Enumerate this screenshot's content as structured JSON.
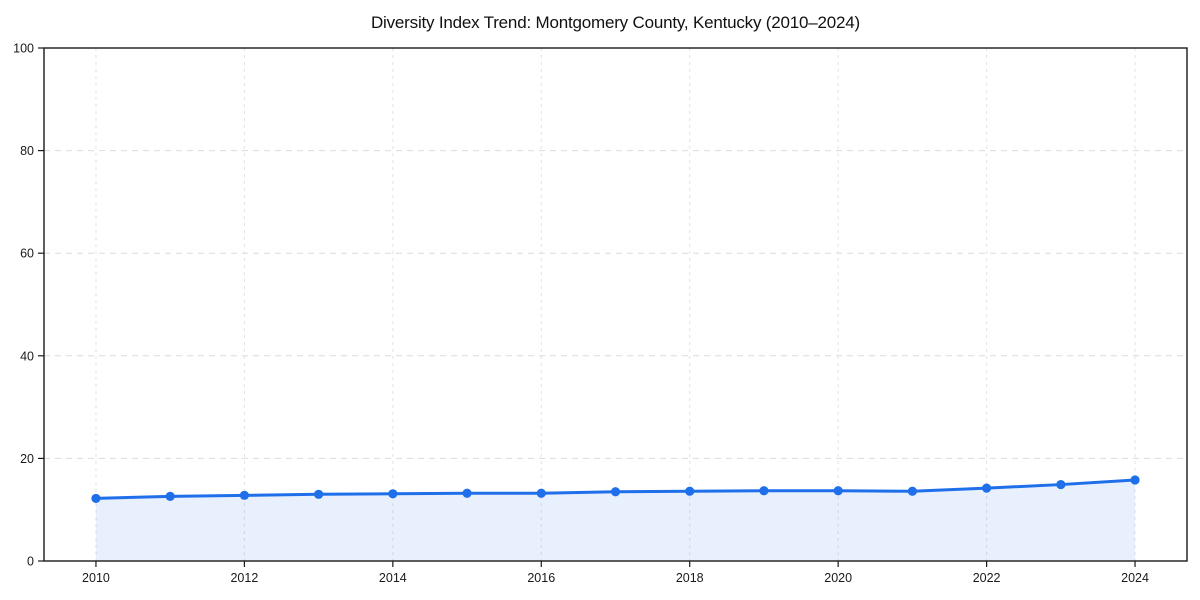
{
  "chart": {
    "title": "Diversity Index Trend: Montgomery County, Kentucky (2010–2024)"
  },
  "chart_data": {
    "type": "line",
    "title": "Diversity Index Trend: Montgomery County, Kentucky (2010–2024)",
    "x": [
      2010,
      2011,
      2012,
      2013,
      2014,
      2015,
      2016,
      2017,
      2018,
      2019,
      2020,
      2021,
      2022,
      2023,
      2024
    ],
    "series": [
      {
        "name": "Diversity Index",
        "values": [
          12.2,
          12.6,
          12.8,
          13.0,
          13.1,
          13.2,
          13.2,
          13.5,
          13.6,
          13.7,
          13.7,
          13.6,
          14.2,
          14.9,
          15.8
        ]
      }
    ],
    "xlabel": "",
    "ylabel": "",
    "xlim": [
      2009.3,
      2024.7
    ],
    "ylim": [
      0,
      100
    ],
    "yticks": [
      0,
      20,
      40,
      60,
      80,
      100
    ],
    "ytick_labels": [
      "0",
      "20",
      "40",
      "60",
      "80",
      "100"
    ],
    "xticks": [
      2010,
      2012,
      2014,
      2016,
      2018,
      2020,
      2022,
      2024
    ],
    "xtick_labels": [
      "2010",
      "2012",
      "2014",
      "2016",
      "2018",
      "2020",
      "2022",
      "2024"
    ],
    "grid": true,
    "legend": false,
    "marker": "circle",
    "area_fill": true,
    "colors": {
      "line": "#1f6feb",
      "marker": "#1f6feb",
      "fill": "rgba(31,111,235,0.10)",
      "grid_h": "#dcdcdc",
      "grid_v": "#e2e2e2",
      "spine": "#1a1a1a",
      "tick_text": "#1a1a1a",
      "background": "#ffffff"
    }
  }
}
